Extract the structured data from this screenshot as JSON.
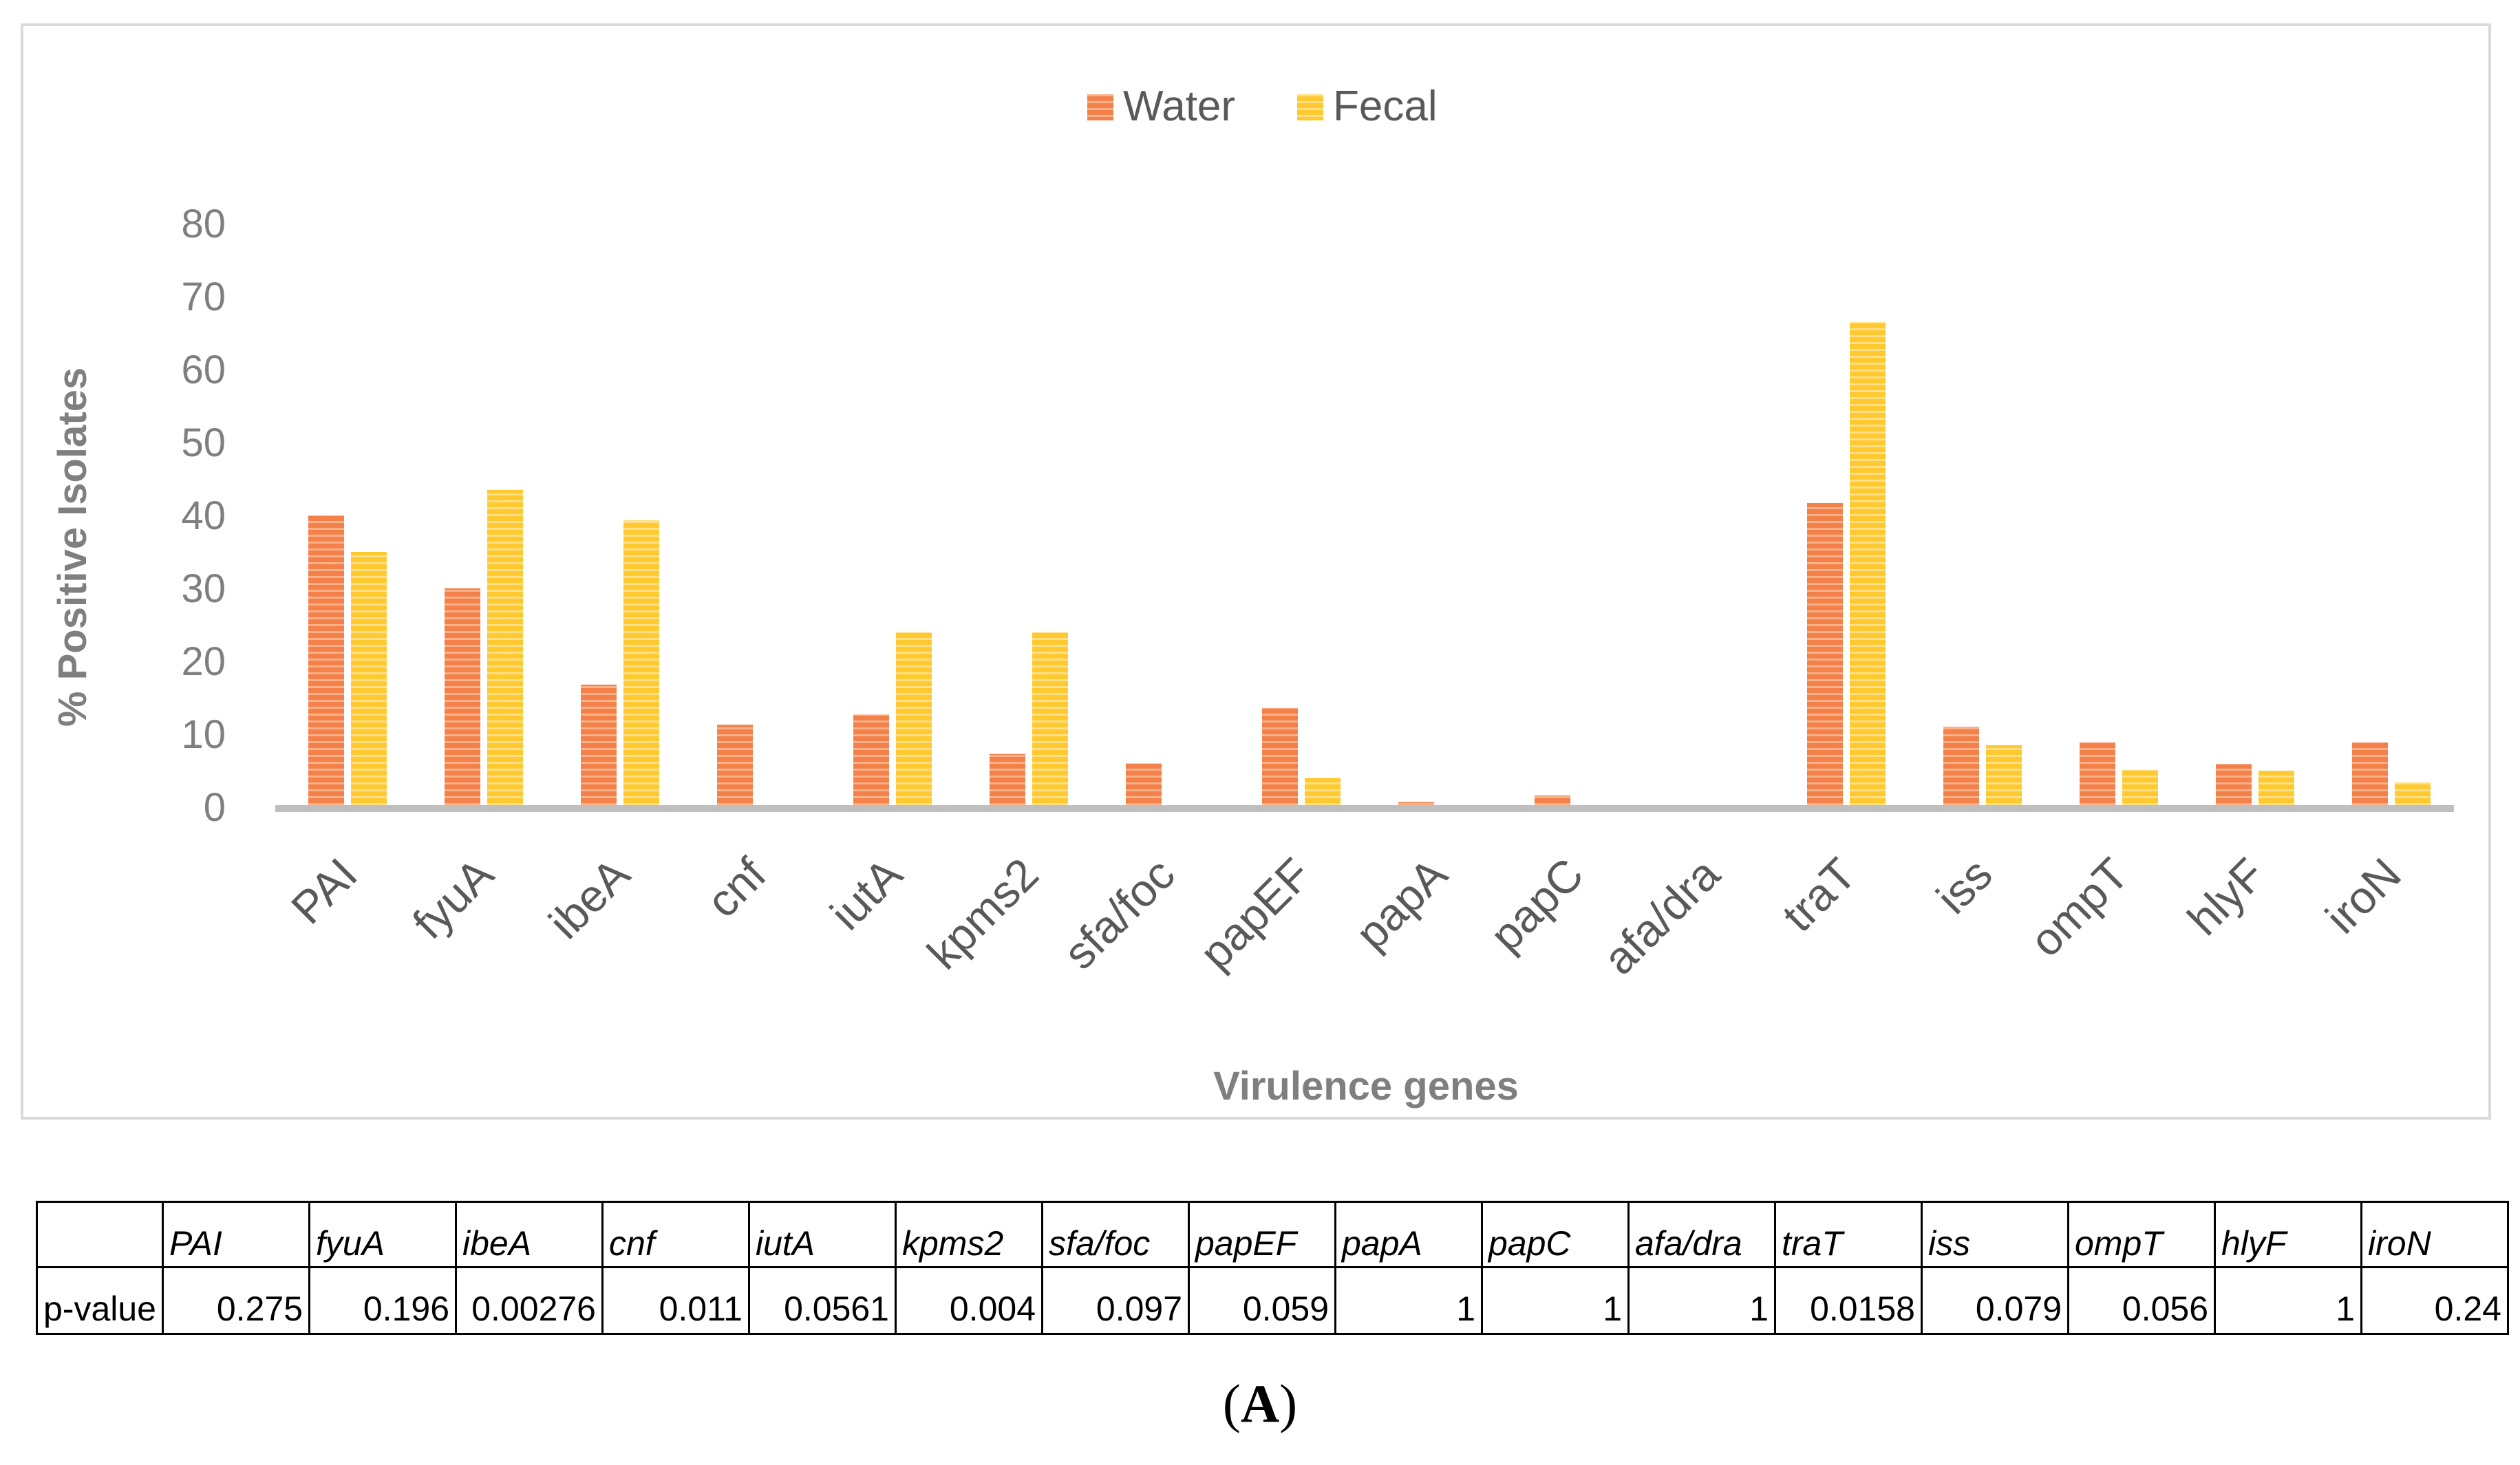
{
  "chart_data": {
    "type": "bar",
    "title": "",
    "xlabel": "Virulence genes",
    "ylabel": "% Positive Isolates",
    "ylim": [
      0,
      80
    ],
    "yticks": [
      0,
      10,
      20,
      30,
      40,
      50,
      60,
      70,
      80
    ],
    "legend_position": "top-center",
    "categories": [
      "PAI",
      "fyuA",
      "ibeA",
      "cnf",
      "iutA",
      "kpms2",
      "sfa/foc",
      "papEF",
      "papA",
      "papC",
      "afa/dra",
      "traT",
      "iss",
      "ompT",
      "hlyF",
      "iroN"
    ],
    "series": [
      {
        "name": "Water",
        "color": "#f4804a",
        "values": [
          40,
          30,
          16.8,
          11.3,
          12.7,
          7.3,
          6,
          13.6,
          0.7,
          1.6,
          0,
          41.7,
          11,
          8.9,
          5.9,
          8.9
        ]
      },
      {
        "name": "Fecal",
        "color": "#ffc92f",
        "values": [
          35,
          43.5,
          39.3,
          0,
          24,
          24,
          0,
          4,
          0,
          0,
          0,
          66.5,
          8.5,
          5.1,
          5,
          3.4
        ]
      }
    ]
  },
  "pvalue_table": {
    "row_label": "p-value",
    "genes": [
      "PAI",
      "fyuA",
      "ibeA",
      "cnf",
      "iutA",
      "kpms2",
      "sfa/foc",
      "papEF",
      "papA",
      "papC",
      "afa/dra",
      "traT",
      "iss",
      "ompT",
      "hlyF",
      "iroN"
    ],
    "pvalues": [
      "0.275",
      "0.196",
      "0.00276",
      "0.011",
      "0.0561",
      "0.004",
      "0.097",
      "0.059",
      "1",
      "1",
      "1",
      "0.0158",
      "0.079",
      "0.056",
      "1",
      "0.24"
    ]
  },
  "panel_label": {
    "open": "(",
    "letter": "A",
    "close": ")"
  }
}
